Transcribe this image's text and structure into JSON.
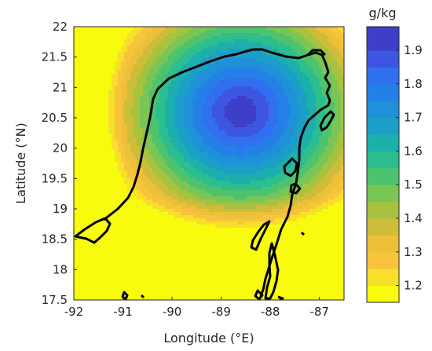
{
  "chart_data": {
    "type": "heatmap",
    "title": "",
    "xlabel": "Longitude (°E)",
    "ylabel": "Latitude (°N)",
    "xlim": [
      -92,
      -86.5
    ],
    "ylim": [
      17.5,
      22
    ],
    "xticks": [
      "-92",
      "-91",
      "-90",
      "-89",
      "-88",
      "-87"
    ],
    "yticks": [
      "17.5",
      "18",
      "18.5",
      "19",
      "19.5",
      "20",
      "20.5",
      "21",
      "21.5",
      "22"
    ],
    "colorbar": {
      "unit": "g/kg",
      "range": [
        1.15,
        1.97
      ],
      "ticks": [
        "1.2",
        "1.3",
        "1.4",
        "1.5",
        "1.6",
        "1.7",
        "1.8",
        "1.9"
      ],
      "levels": [
        1.15,
        1.2,
        1.25,
        1.3,
        1.35,
        1.4,
        1.45,
        1.5,
        1.55,
        1.6,
        1.65,
        1.7,
        1.75,
        1.8,
        1.85,
        1.9,
        1.97
      ],
      "colors": [
        "#f9fb0e",
        "#f7e02a",
        "#f7c43c",
        "#edc03a",
        "#cfbd3a",
        "#a7c23f",
        "#79c654",
        "#4ec36e",
        "#2cbe8e",
        "#1dafab",
        "#1c9fc6",
        "#1e91d8",
        "#2480e8",
        "#3070f0",
        "#3d55e0",
        "#3e3fc8"
      ]
    },
    "field_peak": {
      "lon": -88.6,
      "lat": 20.6,
      "value": 1.95
    },
    "grid": false
  }
}
